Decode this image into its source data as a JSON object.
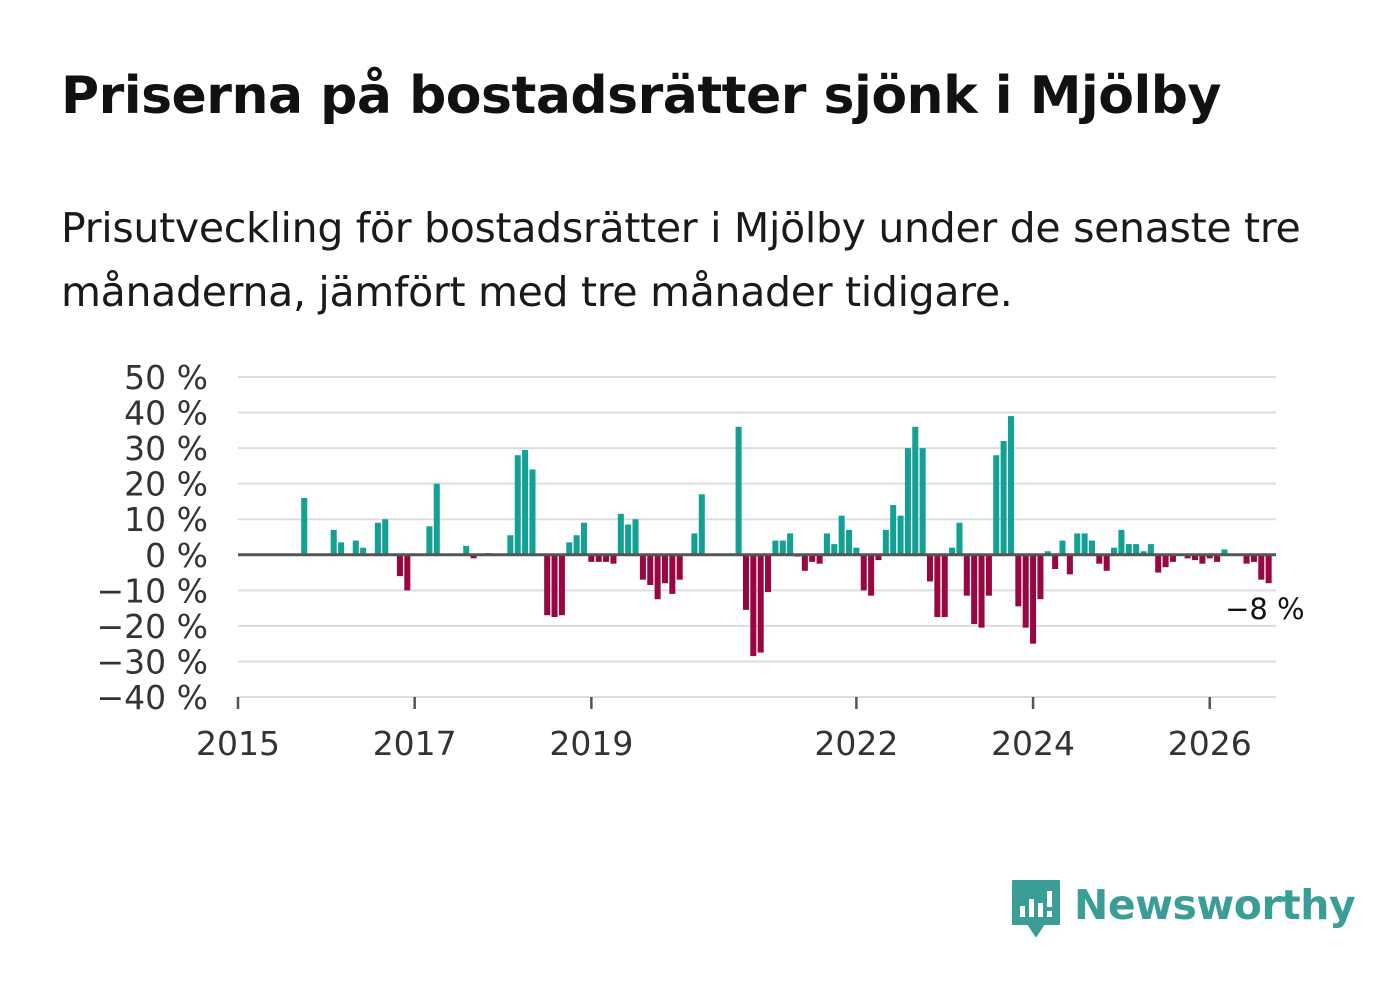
{
  "title": "Priserna på bostadsrätter sjönk i Mjölby",
  "subtitle": "Prisutveckling för bostadsrätter i Mjölby under de senaste tre månaderna, jämfört med tre månader tidigare.",
  "logo": {
    "icon": "newsworthy-logo-icon",
    "text": "Newsworthy"
  },
  "colors": {
    "positive": "#13a095",
    "negative": "#980741",
    "grid": "#dddddd",
    "zero": "#555555",
    "text": "#333333",
    "brand": "#3a9e96"
  },
  "chart_data": {
    "type": "bar",
    "title": "",
    "xlabel": "",
    "ylabel": "",
    "ylim": [
      -40,
      50
    ],
    "yticks": [
      50,
      40,
      30,
      20,
      10,
      0,
      -10,
      -20,
      -30,
      -40
    ],
    "ytick_labels": [
      "50 %",
      "40 %",
      "30 %",
      "20 %",
      "10 %",
      "0 %",
      "−10 %",
      "−20 %",
      "−30 %",
      "−40 %"
    ],
    "xticks": [
      {
        "value": 2015,
        "label": "2015"
      },
      {
        "value": 2017,
        "label": "2017"
      },
      {
        "value": 2019,
        "label": "2019"
      },
      {
        "value": 2022,
        "label": "2022"
      },
      {
        "value": 2024,
        "label": "2024"
      },
      {
        "value": 2026,
        "label": "2026"
      }
    ],
    "start": {
      "year": 2015,
      "month": 1
    },
    "end_label": "−8 %",
    "values": [
      null,
      null,
      null,
      null,
      null,
      null,
      null,
      null,
      null,
      16,
      null,
      null,
      null,
      7,
      3.5,
      null,
      4,
      2,
      null,
      9,
      10,
      null,
      -6,
      -10,
      null,
      null,
      8,
      20,
      null,
      null,
      null,
      2.5,
      -1,
      null,
      0.5,
      null,
      null,
      5.5,
      28,
      29.5,
      24,
      null,
      -17,
      -17.5,
      -17,
      3.5,
      5.5,
      9,
      -2,
      -2,
      -2,
      -2.5,
      11.5,
      8.5,
      10,
      -7,
      -8.5,
      -12.5,
      -8,
      -11,
      -7,
      null,
      6,
      17,
      null,
      null,
      null,
      null,
      36,
      -15.5,
      -28.5,
      -27.5,
      -10.5,
      4,
      4,
      6,
      -0.5,
      -4.5,
      -2,
      -2.5,
      6,
      3,
      11,
      7,
      2,
      -10,
      -11.5,
      -1.5,
      7,
      14,
      11,
      30,
      36,
      30,
      -7.5,
      -17.5,
      -17.5,
      2,
      9,
      -11.5,
      -19.5,
      -20.5,
      -11.5,
      28,
      32,
      39,
      -14.5,
      -20.5,
      -25,
      -12.5,
      1,
      -4,
      4,
      -5.5,
      6,
      6,
      4,
      -2.5,
      -4.5,
      2,
      7,
      3,
      3,
      1,
      3,
      -5,
      -3.5,
      -2,
      null,
      -1,
      -1.5,
      -2.5,
      -1,
      -2,
      1.5,
      null,
      null,
      -2.5,
      -2,
      -7,
      -8
    ]
  }
}
